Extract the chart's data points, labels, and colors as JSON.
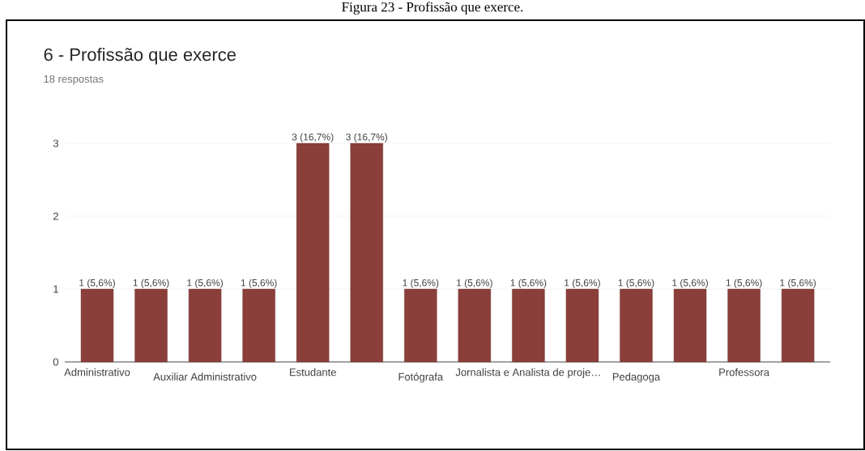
{
  "chart_data": {
    "type": "bar",
    "title": "6 - Profissão que exerce",
    "subtitle": "18 respostas",
    "annotations": [
      "Figura 23 - Profissão que exerce."
    ],
    "categories": [
      "Administrativo",
      null,
      "Auxiliar Administrativo",
      null,
      "Estudante",
      null,
      "Fotógrafa",
      null,
      "Jornalista e Analista de proje…",
      null,
      "Pedagoga",
      null,
      "Professora",
      null
    ],
    "values": [
      1,
      1,
      1,
      1,
      3,
      3,
      1,
      1,
      1,
      1,
      1,
      1,
      1,
      1
    ],
    "value_labels": [
      "1 (5,6%)",
      "1 (5,6%)",
      "1 (5,6%)",
      "1 (5,6%)",
      "3 (16,7%)",
      "3 (16,7%)",
      "1 (5,6%)",
      "1 (5,6%)",
      "1 (5,6%)",
      "1 (5,6%)",
      "1 (5,6%)",
      "1 (5,6%)",
      "1 (5,6%)",
      "1 (5,6%)"
    ],
    "color": "#8b3f3a",
    "ylim": [
      0,
      3
    ],
    "yticks": [
      0,
      1,
      2,
      3
    ],
    "grid": "y"
  }
}
